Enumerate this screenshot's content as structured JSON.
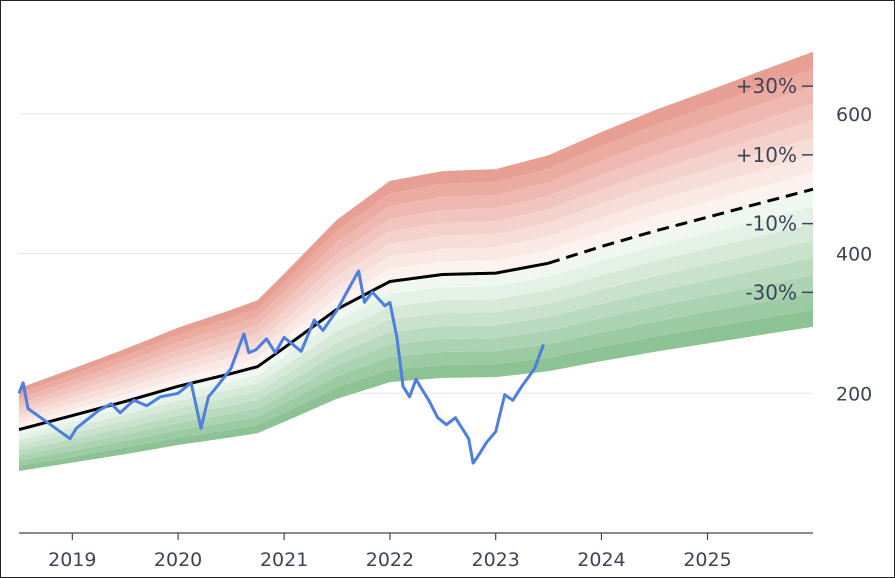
{
  "chart_data": {
    "type": "area",
    "x_axis": {
      "type": "date",
      "range": [
        "2018-07-01",
        "2025-12-31"
      ],
      "ticks": [
        "2019",
        "2020",
        "2021",
        "2022",
        "2023",
        "2024",
        "2025"
      ]
    },
    "y_axis": {
      "range": [
        0,
        760
      ],
      "position": "right",
      "ticks": [
        "200",
        "400",
        "600"
      ],
      "grid": true
    },
    "band_labels": [
      "+30%",
      "+10%",
      "-10%",
      "-30%"
    ],
    "band_label_values": [
      0.3,
      0.1,
      -0.1,
      -0.3
    ],
    "band_offsets": [
      -0.4,
      -0.35,
      -0.3,
      -0.25,
      -0.2,
      -0.15,
      -0.1,
      -0.05,
      0,
      0.05,
      0.1,
      0.15,
      0.2,
      0.25,
      0.3,
      0.35,
      0.4
    ],
    "colors": {
      "over": "#e07b6b",
      "under": "#63ac6e",
      "price_line": "#4d7fe0",
      "fair_value_line": "#000000"
    },
    "fair_value": {
      "x": [
        "2018-07-01",
        "2019-01-01",
        "2019-07-01",
        "2020-01-01",
        "2020-07-01",
        "2020-10-01",
        "2021-01-01",
        "2021-07-01",
        "2021-10-01",
        "2022-01-01",
        "2022-07-01",
        "2023-01-01",
        "2023-07-01"
      ],
      "y": [
        148,
        168,
        188,
        210,
        228,
        238,
        265,
        320,
        340,
        360,
        370,
        372,
        386
      ]
    },
    "fair_value_forecast": {
      "x": [
        "2023-07-01",
        "2024-01-01",
        "2024-07-01",
        "2025-01-01",
        "2025-07-01",
        "2025-12-31"
      ],
      "y": [
        386,
        410,
        432,
        452,
        472,
        492
      ]
    },
    "price": {
      "x": [
        "2018-07-01",
        "2018-07-15",
        "2018-08-01",
        "2018-10-01",
        "2018-12-24",
        "2019-01-15",
        "2019-04-01",
        "2019-05-15",
        "2019-06-15",
        "2019-08-01",
        "2019-09-15",
        "2019-11-01",
        "2020-01-01",
        "2020-02-15",
        "2020-03-20",
        "2020-04-15",
        "2020-05-15",
        "2020-07-01",
        "2020-08-15",
        "2020-09-01",
        "2020-09-25",
        "2020-11-01",
        "2020-12-01",
        "2021-01-01",
        "2021-03-01",
        "2021-04-15",
        "2021-05-15",
        "2021-07-01",
        "2021-08-15",
        "2021-09-15",
        "2021-10-05",
        "2021-11-01",
        "2021-12-15",
        "2022-01-01",
        "2022-01-25",
        "2022-02-15",
        "2022-03-10",
        "2022-04-01",
        "2022-04-15",
        "2022-05-15",
        "2022-06-15",
        "2022-07-15",
        "2022-08-15",
        "2022-09-30",
        "2022-10-15",
        "2022-11-01",
        "2022-12-01",
        "2023-01-01",
        "2023-02-01",
        "2023-03-01",
        "2023-04-01",
        "2023-05-15",
        "2023-06-15"
      ],
      "y": [
        200,
        215,
        178,
        160,
        135,
        150,
        175,
        185,
        172,
        190,
        182,
        195,
        200,
        215,
        150,
        195,
        210,
        235,
        285,
        258,
        262,
        278,
        258,
        280,
        260,
        305,
        290,
        318,
        352,
        375,
        330,
        345,
        325,
        330,
        280,
        210,
        195,
        220,
        210,
        190,
        165,
        155,
        165,
        135,
        100,
        110,
        130,
        145,
        198,
        190,
        210,
        235,
        270
      ]
    }
  }
}
